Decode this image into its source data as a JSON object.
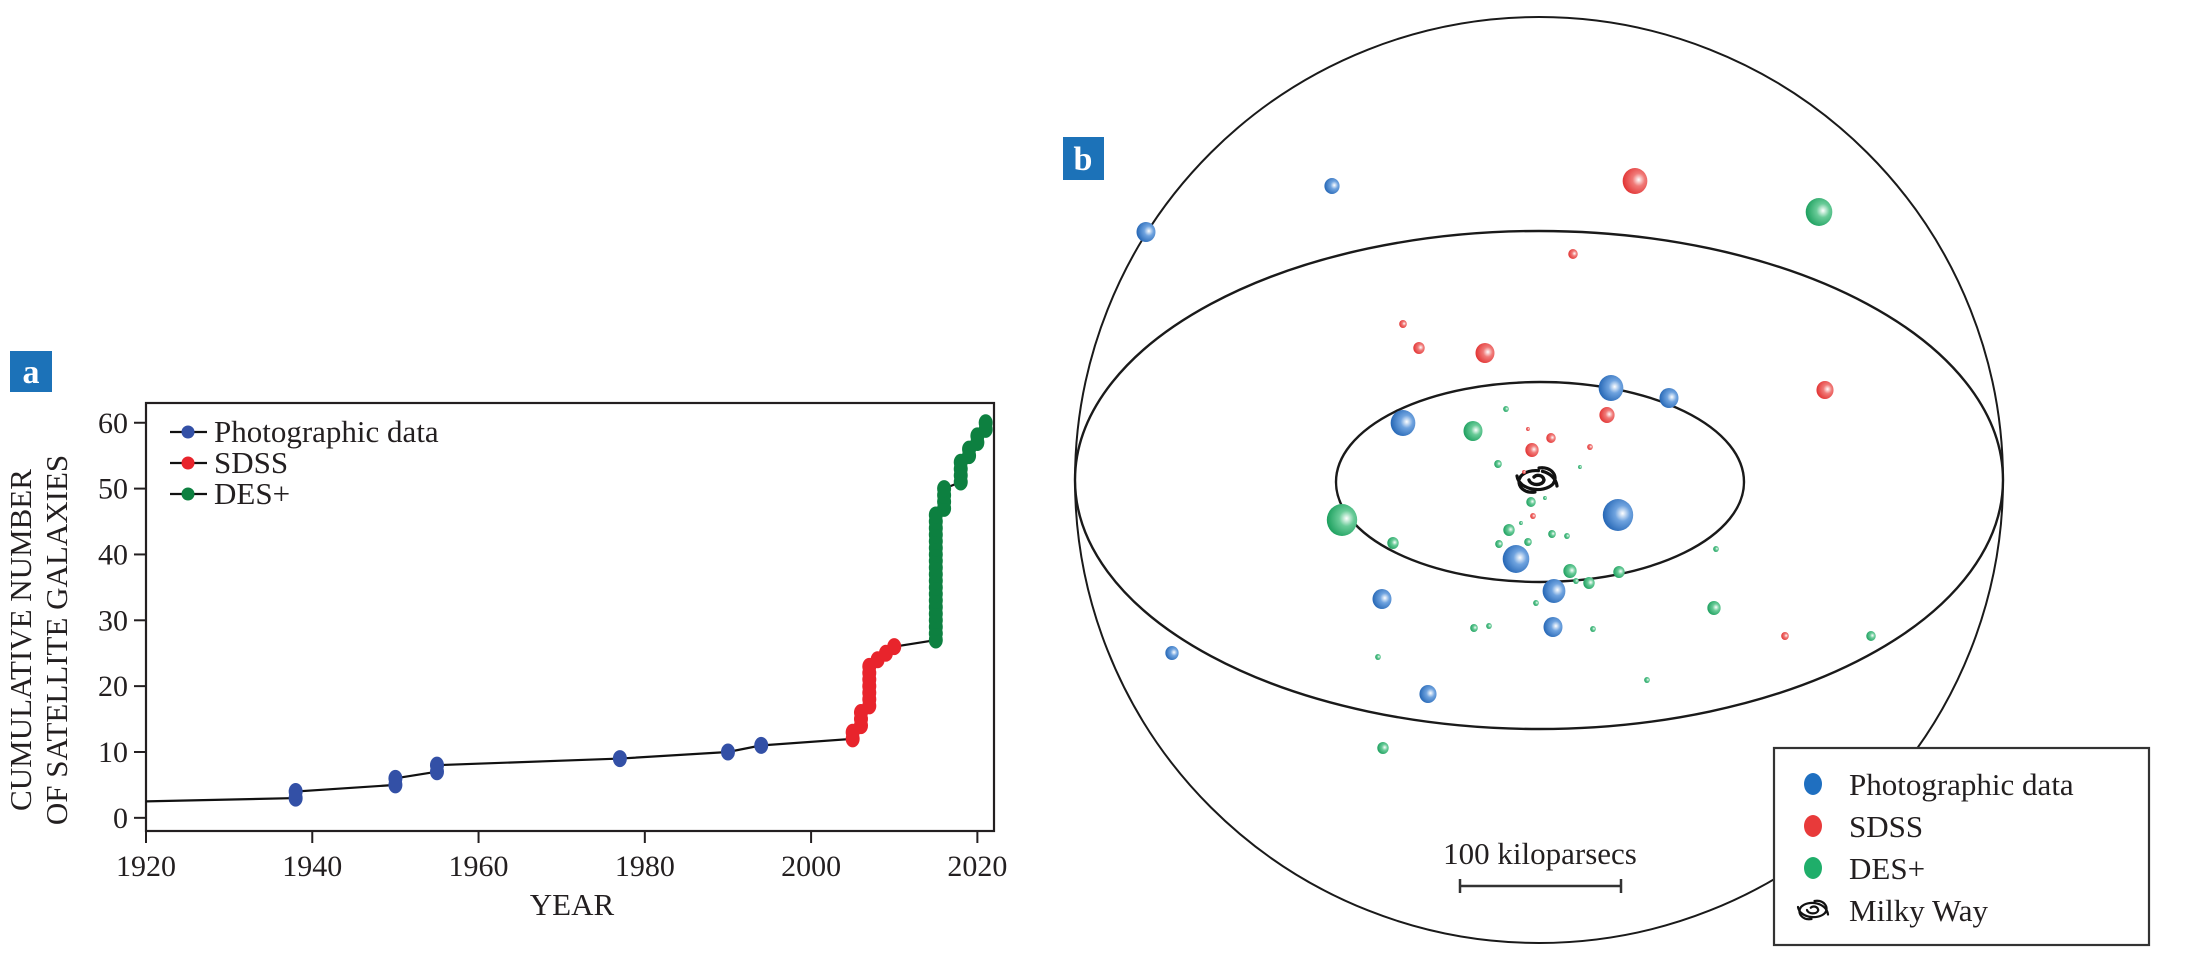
{
  "panel_a": {
    "tag": "a",
    "chart_data": {
      "type": "line",
      "title": "",
      "xlabel": "YEAR",
      "ylabel_lines": [
        "CUMULATIVE NUMBER",
        "OF SATELLITE GALAXIES"
      ],
      "xlim": [
        1920,
        2022
      ],
      "ylim": [
        -2,
        63
      ],
      "xticks": [
        1920,
        1940,
        1960,
        1980,
        2000,
        2020
      ],
      "yticks": [
        0,
        10,
        20,
        30,
        40,
        50,
        60
      ],
      "grid": false,
      "legend_position": "top-left",
      "line_start": {
        "x": 1920,
        "y": 2.5
      },
      "series": [
        {
          "name": "Photographic data",
          "color": "#3350a6",
          "points": [
            [
              1938,
              3
            ],
            [
              1938,
              4
            ],
            [
              1950,
              5
            ],
            [
              1950,
              6
            ],
            [
              1955,
              7
            ],
            [
              1955,
              8
            ],
            [
              1977,
              9
            ],
            [
              1990,
              10
            ],
            [
              1994,
              11
            ]
          ]
        },
        {
          "name": "SDSS",
          "color": "#e8242c",
          "points": [
            [
              2005,
              12
            ],
            [
              2005,
              13
            ],
            [
              2006,
              14
            ],
            [
              2006,
              15
            ],
            [
              2006,
              16
            ],
            [
              2007,
              17
            ],
            [
              2007,
              18
            ],
            [
              2007,
              19
            ],
            [
              2007,
              20
            ],
            [
              2007,
              21
            ],
            [
              2007,
              22
            ],
            [
              2007,
              23
            ],
            [
              2008,
              24
            ],
            [
              2009,
              25
            ],
            [
              2010,
              26
            ]
          ]
        },
        {
          "name": "DES+",
          "color": "#0d8040",
          "points": [
            [
              2015,
              27
            ],
            [
              2015,
              28
            ],
            [
              2015,
              29
            ],
            [
              2015,
              30
            ],
            [
              2015,
              31
            ],
            [
              2015,
              32
            ],
            [
              2015,
              33
            ],
            [
              2015,
              34
            ],
            [
              2015,
              35
            ],
            [
              2015,
              36
            ],
            [
              2015,
              37
            ],
            [
              2015,
              38
            ],
            [
              2015,
              39
            ],
            [
              2015,
              40
            ],
            [
              2015,
              41
            ],
            [
              2015,
              42
            ],
            [
              2015,
              43
            ],
            [
              2015,
              44
            ],
            [
              2015,
              45
            ],
            [
              2015,
              46
            ],
            [
              2016,
              47
            ],
            [
              2016,
              48
            ],
            [
              2016,
              49
            ],
            [
              2016,
              50
            ],
            [
              2018,
              51
            ],
            [
              2018,
              52
            ],
            [
              2018,
              53
            ],
            [
              2018,
              54
            ],
            [
              2019,
              55
            ],
            [
              2019,
              56
            ],
            [
              2020,
              57
            ],
            [
              2020,
              58
            ],
            [
              2021,
              59
            ],
            [
              2021,
              60
            ]
          ]
        }
      ]
    }
  },
  "panel_b": {
    "tag": "b",
    "scale_label": "100 kiloparsecs",
    "legend": [
      {
        "label": "Photographic data",
        "icon": "blue-dot-icon",
        "color": "#1f6fc0"
      },
      {
        "label": "SDSS",
        "icon": "red-dot-icon",
        "color": "#e83a3a"
      },
      {
        "label": "DES+",
        "icon": "green-dot-icon",
        "color": "#1fae6a"
      },
      {
        "label": "Milky Way",
        "icon": "spiral-galaxy-icon",
        "color": "#231f20"
      }
    ],
    "colors": {
      "blue": "#1f6fc0",
      "red": "#e83a3a",
      "green": "#1fae6a"
    }
  }
}
